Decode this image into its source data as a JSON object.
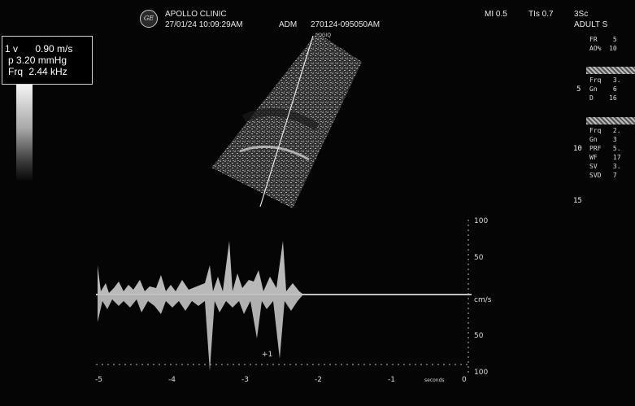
{
  "header": {
    "clinic_name": "APOLLO CLINIC",
    "datetime": "27/01/24 10:09:29AM",
    "operator": "ADM",
    "study_id": "270124-095050AM",
    "mi": "MI 0.5",
    "tis": "TIs 0.7",
    "probe": "3Sc",
    "preset": "ADULT S",
    "probe_marker": "LOGIQ P3",
    "logo_text": "GE"
  },
  "measurement": {
    "rows": [
      {
        "label": "1 v",
        "value": "0.90 m/s"
      },
      {
        "label": "p",
        "value": "3.20 mmHg"
      },
      {
        "label": "Frq",
        "value": "2.44 kHz"
      }
    ]
  },
  "right_panel": {
    "top_params": [
      {
        "label": "FR",
        "value": "5"
      },
      {
        "label": "AO%",
        "value": "10"
      }
    ],
    "b_mode_params": [
      {
        "label": "Frq",
        "value": "3."
      },
      {
        "label": "Gn",
        "value": "6"
      },
      {
        "label": "D",
        "value": "16"
      }
    ],
    "pw_params": [
      {
        "label": "Frq",
        "value": "2."
      },
      {
        "label": "Gn",
        "value": "3"
      },
      {
        "label": "PRF",
        "value": "5."
      },
      {
        "label": "WF",
        "value": "17"
      },
      {
        "label": "SV",
        "value": "3."
      },
      {
        "label": "SVD",
        "value": "7"
      }
    ],
    "depth_ticks": [
      "5",
      "10",
      "15"
    ]
  },
  "spectrum": {
    "velocity_scale": [
      "100",
      "50",
      "cm/s",
      "50",
      "100"
    ],
    "time_scale": [
      "-5",
      "-4",
      "-3",
      "-2",
      "-1",
      "0"
    ],
    "time_unit": "seconds",
    "cursor_label": "+1"
  },
  "colors": {
    "background": "#050505",
    "text": "#f2f2f2",
    "baseline": "#ffffff"
  }
}
